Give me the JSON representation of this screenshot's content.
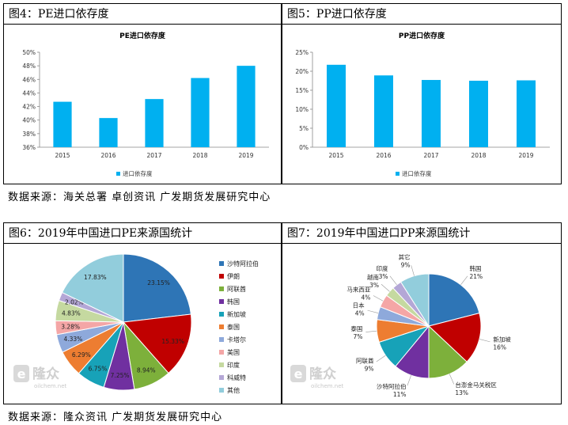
{
  "panels": {
    "fig4": {
      "title": "图4：PE进口依存度"
    },
    "fig5": {
      "title": "图5：PP进口依存度"
    },
    "fig6": {
      "title": "图6：2019年中国进口PE来源国统计"
    },
    "fig7": {
      "title": "图7：2019年中国进口PP来源国统计"
    }
  },
  "sources": {
    "top": "数据来源：海关总署    卓创资讯    广发期货发展研究中心",
    "bottom": "数据来源：隆众资讯    广发期货发展研究中心"
  },
  "watermark": {
    "brand": "隆众",
    "site": "oilchem.net"
  },
  "colors": {
    "bar": "#00B0F0",
    "pie": [
      "#2E75B6",
      "#C00000",
      "#7DB03B",
      "#7030A0",
      "#17A2B8",
      "#ED7D31",
      "#8EA9DB",
      "#F4A6A6",
      "#C5D9A0",
      "#B4A7D6",
      "#92CDDC"
    ]
  },
  "chart_data": [
    {
      "id": "pe_dependency",
      "type": "bar",
      "title": "PE进口依存度",
      "categories": [
        "2015",
        "2016",
        "2017",
        "2018",
        "2019"
      ],
      "series": [
        {
          "name": "进口依存度",
          "values": [
            42.7,
            40.3,
            43.1,
            46.2,
            48.0
          ]
        }
      ],
      "yticks": [
        "36%",
        "38%",
        "40%",
        "42%",
        "44%",
        "46%",
        "48%",
        "50%"
      ],
      "ylim": [
        36,
        50
      ],
      "ystep": 2,
      "unit": "%",
      "grid": false,
      "legend": "bottom"
    },
    {
      "id": "pp_dependency",
      "type": "bar",
      "title": "PP进口依存度",
      "categories": [
        "2015",
        "2016",
        "2017",
        "2018",
        "2019"
      ],
      "series": [
        {
          "name": "进口依存度",
          "values": [
            21.7,
            18.9,
            17.7,
            17.5,
            17.6
          ]
        }
      ],
      "yticks": [
        "0%",
        "5%",
        "10%",
        "15%",
        "20%",
        "25%"
      ],
      "ylim": [
        0,
        25
      ],
      "ystep": 5,
      "unit": "%",
      "grid": false,
      "legend": "bottom"
    },
    {
      "id": "pe_sources",
      "type": "pie",
      "slices": [
        {
          "name": "沙特阿拉伯",
          "value": 23.15,
          "label": "23.15%"
        },
        {
          "name": "伊朗",
          "value": 15.33,
          "label": "15.33%"
        },
        {
          "name": "阿联酋",
          "value": 8.94,
          "label": "8.94%"
        },
        {
          "name": "韩国",
          "value": 7.25,
          "label": "7.25%"
        },
        {
          "name": "新加坡",
          "value": 6.75,
          "label": "6.75%"
        },
        {
          "name": "泰国",
          "value": 6.29,
          "label": "6.29%"
        },
        {
          "name": "卡塔尔",
          "value": 4.33,
          "label": "4.33%"
        },
        {
          "name": "美国",
          "value": 3.28,
          "label": "3.28%"
        },
        {
          "name": "印度",
          "value": 4.83,
          "label": "4.83%"
        },
        {
          "name": "科威特",
          "value": 2.02,
          "label": "2.02%"
        },
        {
          "name": "其他",
          "value": 17.83,
          "label": "17.83%"
        }
      ],
      "legend": "right"
    },
    {
      "id": "pp_sources",
      "type": "pie",
      "slices": [
        {
          "name": "韩国",
          "value": 21,
          "label": "21%"
        },
        {
          "name": "新加坡",
          "value": 16,
          "label": "16%"
        },
        {
          "name": "台澎金马关税区",
          "value": 13,
          "label": "13%"
        },
        {
          "name": "沙特阿拉伯",
          "value": 11,
          "label": "11%"
        },
        {
          "name": "阿联酋",
          "value": 9,
          "label": "9%"
        },
        {
          "name": "泰国",
          "value": 7,
          "label": "7%"
        },
        {
          "name": "日本",
          "value": 4,
          "label": "4%"
        },
        {
          "name": "马来西亚",
          "value": 4,
          "label": "4%"
        },
        {
          "name": "越南",
          "value": 3,
          "label": "3%"
        },
        {
          "name": "印度",
          "value": 3,
          "label": "3%"
        },
        {
          "name": "其它",
          "value": 9,
          "label": "9%"
        }
      ],
      "legend": "none"
    }
  ]
}
